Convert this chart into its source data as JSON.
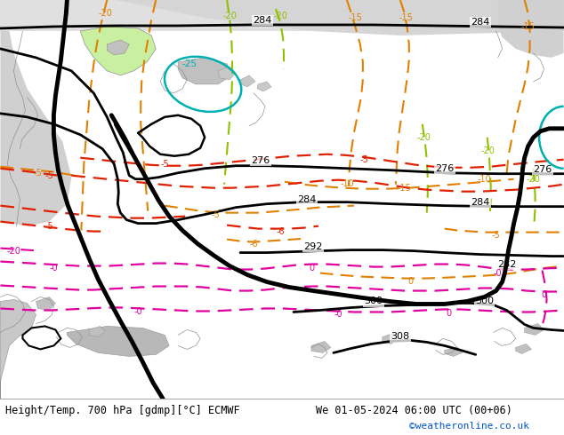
{
  "title_left": "Height/Temp. 700 hPa [gdmp][°C] ECMWF",
  "title_right": "We 01-05-2024 06:00 UTC (00+06)",
  "credit": "©weatheronline.co.uk",
  "land_color": "#c8f0a0",
  "gray_color": "#c8c8c8",
  "gray2_color": "#b8b8b8",
  "footer_bg": "#ffffff",
  "footer_text_color": "#000000",
  "credit_color": "#0055cc",
  "black": "#000000",
  "orange": "#e08000",
  "yellow_green": "#90c000",
  "red": "#e02000",
  "magenta": "#e000a0",
  "cyan": "#00b0b0",
  "border_color": "#909090"
}
